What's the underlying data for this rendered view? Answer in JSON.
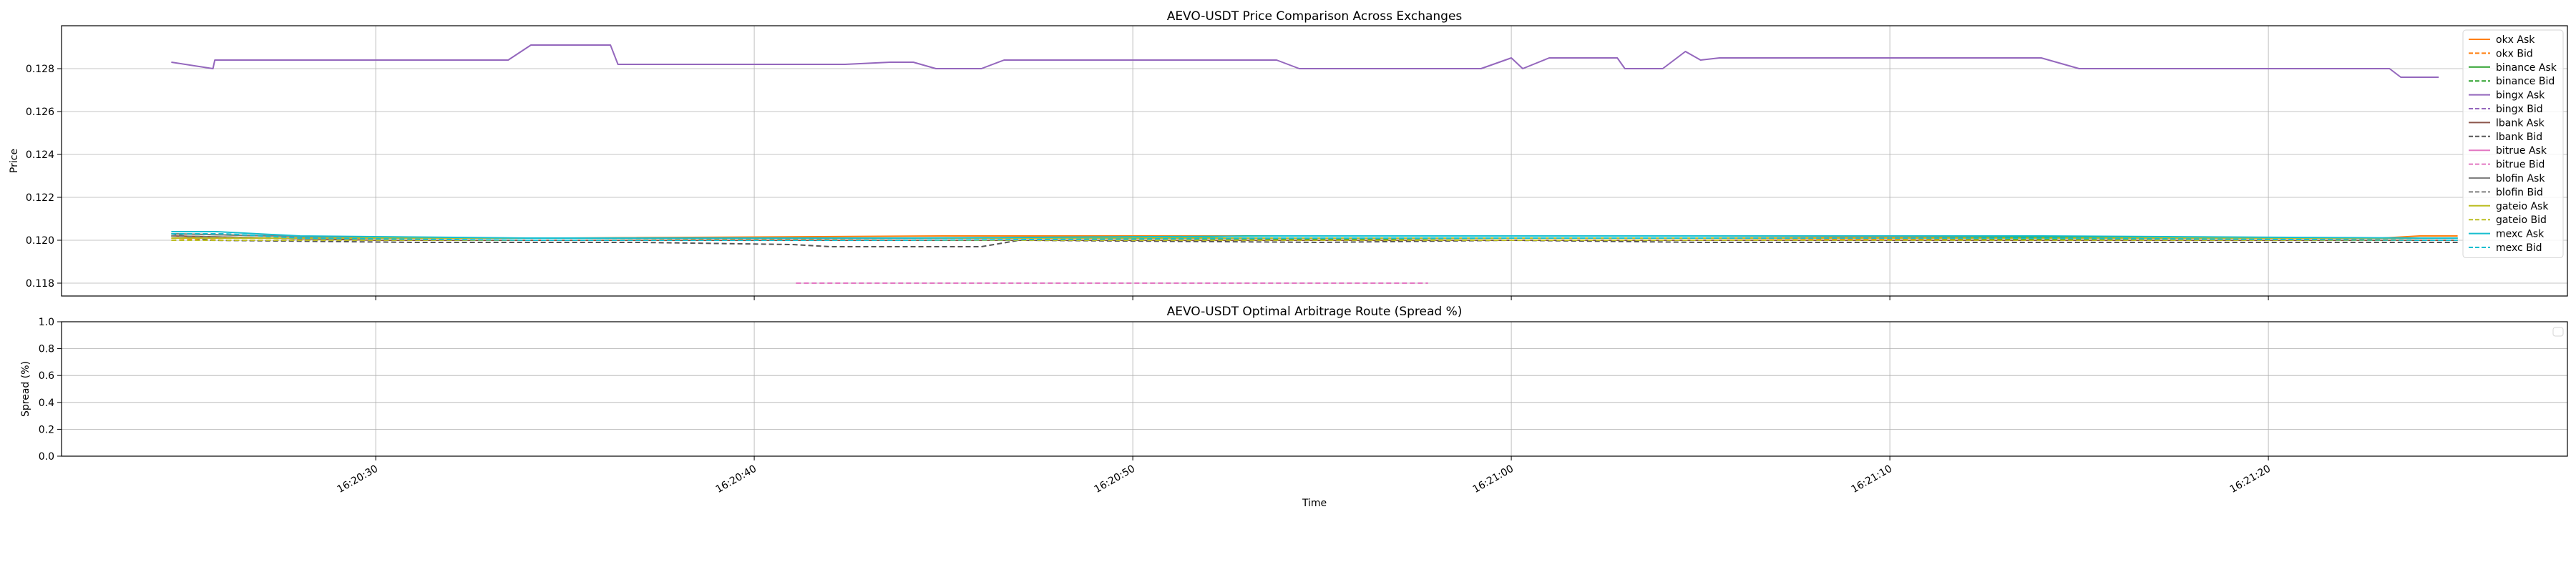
{
  "chart_data": [
    {
      "type": "line",
      "title": "AEVO-USDT Price Comparison Across Exchanges",
      "xlabel": "",
      "ylabel": "Price",
      "ylim": [
        0.1174,
        0.13
      ],
      "yticks": [
        "0.118",
        "0.120",
        "0.122",
        "0.124",
        "0.126",
        "0.128"
      ],
      "xlim": [
        "16:20:21.7",
        "16:21:27.9"
      ],
      "xtick_labels": [
        "16:20:30",
        "16:20:40",
        "16:20:50",
        "16:21:00",
        "16:21:10",
        "16:21:20"
      ],
      "grid": true,
      "legend_position": "upper right",
      "series": [
        {
          "name": "okx Ask",
          "color": "#ff7f0e",
          "dash": "solid",
          "x": [
            "16:20:24.6",
            "16:20:26.0",
            "16:20:35.0",
            "16:20:45.0",
            "16:20:55.0",
            "16:21:05.0",
            "16:21:15.0",
            "16:21:23.0",
            "16:21:24.0",
            "16:21:25.0"
          ],
          "y": [
            0.1202,
            0.1201,
            0.1201,
            0.1202,
            0.1202,
            0.1202,
            0.1201,
            0.1201,
            0.1202,
            0.1202
          ]
        },
        {
          "name": "okx Bid",
          "color": "#ff7f0e",
          "dash": "dashed",
          "x": [
            "16:20:24.6",
            "16:20:26.0",
            "16:20:35.0",
            "16:20:45.0",
            "16:20:55.0",
            "16:21:05.0",
            "16:21:15.0",
            "16:21:25.0"
          ],
          "y": [
            0.1201,
            0.12,
            0.12,
            0.1201,
            0.1201,
            0.1201,
            0.12,
            0.1201
          ]
        },
        {
          "name": "binance Ask",
          "color": "#2ca02c",
          "dash": "solid",
          "x": [
            "16:20:24.6",
            "16:20:30.0",
            "16:20:40.0",
            "16:20:50.0",
            "16:20:53.0",
            "16:21:00.0",
            "16:21:10.0",
            "16:21:20.0",
            "16:21:25.0"
          ],
          "y": [
            0.1203,
            0.1201,
            0.1201,
            0.1201,
            0.1202,
            0.1202,
            0.1202,
            0.1201,
            0.1201
          ]
        },
        {
          "name": "binance Bid",
          "color": "#2ca02c",
          "dash": "dashed",
          "x": [
            "16:20:24.6",
            "16:20:30.0",
            "16:20:40.0",
            "16:20:50.0",
            "16:21:00.0",
            "16:21:10.0",
            "16:21:20.0",
            "16:21:25.0"
          ],
          "y": [
            0.1202,
            0.12,
            0.12,
            0.12,
            0.1201,
            0.1201,
            0.12,
            0.12
          ]
        },
        {
          "name": "bingx Ask",
          "color": "#9467bd",
          "dash": "solid",
          "x": [
            "16:20:24.6",
            "16:20:25.7",
            "16:20:25.75",
            "16:20:33.5",
            "16:20:34.1",
            "16:20:36.2",
            "16:20:36.4",
            "16:20:42.4",
            "16:20:43.6",
            "16:20:44.2",
            "16:20:44.8",
            "16:20:46.0",
            "16:20:46.6",
            "16:20:53.8",
            "16:20:54.4",
            "16:20:59.2",
            "16:21:00.0",
            "16:21:00.3",
            "16:21:01.0",
            "16:21:02.8",
            "16:21:03.0",
            "16:21:04.0",
            "16:21:04.6",
            "16:21:05.0",
            "16:21:05.5",
            "16:21:06.0",
            "16:21:14.0",
            "16:21:15.0",
            "16:21:23.2",
            "16:21:23.5",
            "16:21:24.5"
          ],
          "y": [
            0.1283,
            0.128,
            0.1284,
            0.1284,
            0.1291,
            0.1291,
            0.1282,
            0.1282,
            0.1283,
            0.1283,
            0.128,
            0.128,
            0.1284,
            0.1284,
            0.128,
            0.128,
            0.1285,
            0.128,
            0.1285,
            0.1285,
            0.128,
            0.128,
            0.1288,
            0.1284,
            0.1285,
            0.1285,
            0.1285,
            0.128,
            0.128,
            0.1276,
            0.1276
          ]
        },
        {
          "name": "bingx Bid",
          "color": "#9467bd",
          "dash": "dashed",
          "x": [],
          "y": []
        },
        {
          "name": "lbank Ask",
          "color": "#8c564b",
          "dash": "solid",
          "x": [
            "16:20:24.6",
            "16:20:30.0",
            "16:20:40.0",
            "16:20:50.0",
            "16:21:00.0",
            "16:21:10.0",
            "16:21:20.0",
            "16:21:25.0"
          ],
          "y": [
            0.1202,
            0.12,
            0.12,
            0.12,
            0.12,
            0.12,
            0.12,
            0.12
          ]
        },
        {
          "name": "lbank Bid",
          "color": "#555555",
          "dash": "dashed",
          "x": [
            "16:20:24.6",
            "16:20:25.6",
            "16:20:31.0",
            "16:20:37.0",
            "16:20:41.0",
            "16:20:42.0",
            "16:20:46.0",
            "16:20:47.0",
            "16:20:55.0",
            "16:21:00.0",
            "16:21:05.0",
            "16:21:10.0",
            "16:21:20.0",
            "16:21:25.0"
          ],
          "y": [
            0.1203,
            0.12,
            0.1199,
            0.1199,
            0.1198,
            0.1197,
            0.1197,
            0.12,
            0.1199,
            0.12,
            0.1199,
            0.1199,
            0.1199,
            0.1199
          ]
        },
        {
          "name": "bitrue Ask",
          "color": "#e377c2",
          "dash": "solid",
          "x": [],
          "y": []
        },
        {
          "name": "bitrue Bid",
          "color": "#e377c2",
          "dash": "dashed",
          "x": [
            "16:20:41.1",
            "16:20:57.8"
          ],
          "y": [
            0.118,
            0.118
          ]
        },
        {
          "name": "blofin Ask",
          "color": "#7f7f7f",
          "dash": "solid",
          "x": [
            "16:20:24.6",
            "16:20:30.0",
            "16:20:40.0",
            "16:20:50.0",
            "16:21:00.0",
            "16:21:10.0",
            "16:21:20.0",
            "16:21:25.0"
          ],
          "y": [
            0.1203,
            0.1201,
            0.1201,
            0.1201,
            0.1201,
            0.1201,
            0.1201,
            0.1201
          ]
        },
        {
          "name": "blofin Bid",
          "color": "#7f7f7f",
          "dash": "dashed",
          "x": [
            "16:20:24.6",
            "16:20:30.0",
            "16:20:40.0",
            "16:20:50.0",
            "16:21:00.0",
            "16:21:10.0",
            "16:21:20.0",
            "16:21:25.0"
          ],
          "y": [
            0.1202,
            0.12,
            0.12,
            0.12,
            0.12,
            0.12,
            0.12,
            0.12
          ]
        },
        {
          "name": "gateio Ask",
          "color": "#bcbd22",
          "dash": "solid",
          "x": [
            "16:20:24.6",
            "16:20:28.0",
            "16:20:38.0",
            "16:20:48.0",
            "16:20:58.0",
            "16:21:08.0",
            "16:21:18.0",
            "16:21:25.0"
          ],
          "y": [
            0.1201,
            0.1201,
            0.1201,
            0.1201,
            0.1201,
            0.1201,
            0.1201,
            0.1201
          ]
        },
        {
          "name": "gateio Bid",
          "color": "#bcbd22",
          "dash": "dashed",
          "x": [
            "16:20:24.6",
            "16:20:28.0",
            "16:20:38.0",
            "16:20:48.0",
            "16:20:58.0",
            "16:21:08.0",
            "16:21:18.0",
            "16:21:25.0"
          ],
          "y": [
            0.12,
            0.12,
            0.12,
            0.12,
            0.12,
            0.12,
            0.12,
            0.12
          ]
        },
        {
          "name": "mexc Ask",
          "color": "#17becf",
          "dash": "solid",
          "x": [
            "16:20:24.6",
            "16:20:25.8",
            "16:20:28.0",
            "16:20:34.0",
            "16:20:44.0",
            "16:20:54.0",
            "16:21:04.0",
            "16:21:14.0",
            "16:21:24.0",
            "16:21:25.0"
          ],
          "y": [
            0.1204,
            0.1204,
            0.1202,
            0.1201,
            0.1201,
            0.1202,
            0.1202,
            0.1202,
            0.1201,
            0.1201
          ]
        },
        {
          "name": "mexc Bid",
          "color": "#17becf",
          "dash": "dashed",
          "x": [
            "16:20:24.6",
            "16:20:26.0",
            "16:20:28.0",
            "16:20:34.0",
            "16:20:44.0",
            "16:20:54.0",
            "16:21:04.0",
            "16:21:14.0",
            "16:21:24.0",
            "16:21:25.0"
          ],
          "y": [
            0.1203,
            0.1203,
            0.1201,
            0.12,
            0.12,
            0.1201,
            0.1201,
            0.1201,
            0.12,
            0.12
          ]
        }
      ]
    },
    {
      "type": "line",
      "title": "AEVO-USDT Optimal Arbitrage Route (Spread %)",
      "xlabel": "Time",
      "ylabel": "Spread (%)",
      "ylim": [
        0.0,
        1.0
      ],
      "yticks": [
        "0.0",
        "0.2",
        "0.4",
        "0.6",
        "0.8",
        "1.0"
      ],
      "xlim": [
        "16:20:21.7",
        "16:21:27.9"
      ],
      "xtick_labels": [
        "16:20:30",
        "16:20:40",
        "16:20:50",
        "16:21:00",
        "16:21:10",
        "16:21:20"
      ],
      "grid": true,
      "legend_position": "upper right",
      "series": []
    }
  ]
}
